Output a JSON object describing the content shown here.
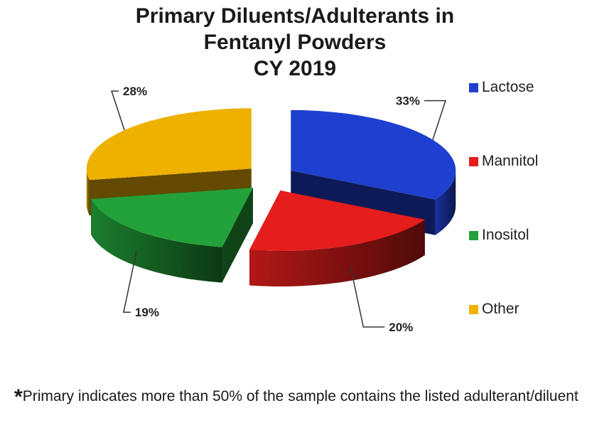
{
  "chart_data": {
    "type": "pie",
    "title_lines": [
      "Primary Diluents/Adulterants in",
      "Fentanyl Powders",
      "CY 2019"
    ],
    "slices": [
      {
        "label": "Lactose",
        "value": 33,
        "display": "33%",
        "color": "#1f3fd0"
      },
      {
        "label": "Mannitol",
        "value": 20,
        "display": "20%",
        "color": "#e51d1d"
      },
      {
        "label": "Inositol",
        "value": 19,
        "display": "19%",
        "color": "#23a13a"
      },
      {
        "label": "Other",
        "value": 28,
        "display": "28%",
        "color": "#eeb100"
      }
    ],
    "legend_position": "right"
  },
  "footnote": {
    "star": "*",
    "text": "Primary indicates more than 50% of the sample contains the listed adulterant/diluent"
  }
}
